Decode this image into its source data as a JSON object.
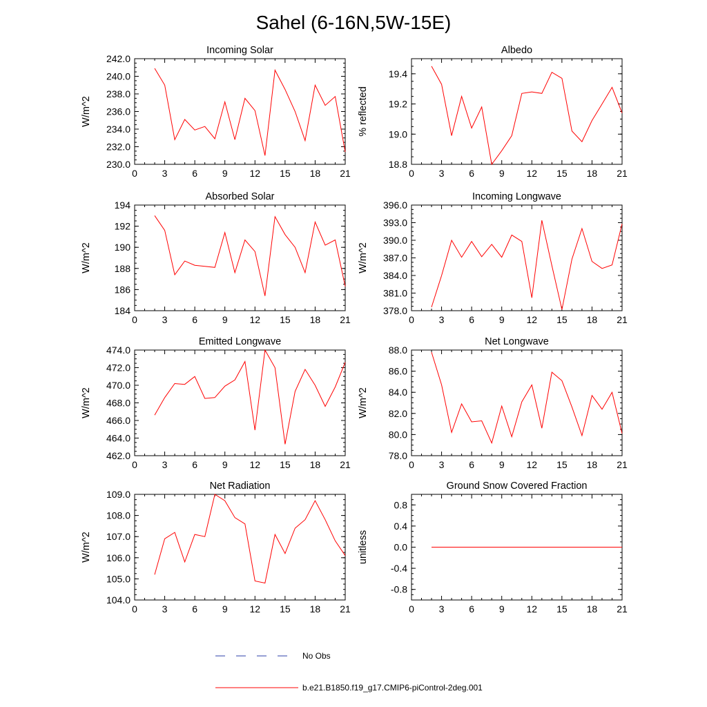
{
  "figure": {
    "title": "Sahel (6-16N,5W-15E)"
  },
  "legend": {
    "entries": [
      {
        "label": "No Obs",
        "style": "dashed",
        "color": "#2b3fa8"
      },
      {
        "label": "b.e21.B1850.f19_g17.CMIP6-piControl-2deg.001",
        "style": "solid",
        "color": "#ff0000"
      }
    ]
  },
  "chart_data": [
    {
      "type": "line",
      "title": "Incoming Solar",
      "ylabel": "W/m^2",
      "xlim": [
        0,
        21
      ],
      "ylim": [
        230,
        242
      ],
      "xticks": [
        0,
        3,
        6,
        9,
        12,
        15,
        18,
        21
      ],
      "yticks": [
        230,
        232,
        234,
        236,
        238,
        240,
        242
      ],
      "ytick_labels": [
        "230.0",
        "232.0",
        "234.0",
        "236.0",
        "238.0",
        "240.0",
        "242.0"
      ],
      "x": [
        2,
        3,
        4,
        5,
        6,
        7,
        8,
        9,
        10,
        11,
        12,
        13,
        14,
        15,
        16,
        17,
        18,
        19,
        20,
        21
      ],
      "series": [
        {
          "name": "b.e21.B1850.f19_g17.CMIP6-piControl-2deg.001",
          "color": "#ff0000",
          "values": [
            240.9,
            239.0,
            232.8,
            235.1,
            233.9,
            234.3,
            232.9,
            237.1,
            232.8,
            237.5,
            236.1,
            231.0,
            240.7,
            238.5,
            236.0,
            232.7,
            239.0,
            236.7,
            237.7,
            231.4
          ]
        }
      ]
    },
    {
      "type": "line",
      "title": "Albedo",
      "ylabel": "% reflected",
      "xlim": [
        0,
        21
      ],
      "ylim": [
        18.8,
        19.5
      ],
      "xticks": [
        0,
        3,
        6,
        9,
        12,
        15,
        18,
        21
      ],
      "yticks": [
        18.8,
        19.0,
        19.2,
        19.4
      ],
      "ytick_labels": [
        "18.8",
        "19.0",
        "19.2",
        "19.4"
      ],
      "x": [
        2,
        3,
        4,
        5,
        6,
        7,
        8,
        9,
        10,
        11,
        12,
        13,
        14,
        15,
        16,
        17,
        18,
        19,
        20,
        21
      ],
      "series": [
        {
          "name": "b.e21.B1850.f19_g17.CMIP6-piControl-2deg.001",
          "color": "#ff0000",
          "values": [
            19.45,
            19.33,
            18.99,
            19.25,
            19.04,
            19.18,
            18.8,
            18.89,
            18.99,
            19.27,
            19.28,
            19.27,
            19.41,
            19.37,
            19.02,
            18.95,
            19.09,
            19.2,
            19.31,
            19.14
          ]
        }
      ]
    },
    {
      "type": "line",
      "title": "Absorbed Solar",
      "ylabel": "W/m^2",
      "xlim": [
        0,
        21
      ],
      "ylim": [
        184,
        194
      ],
      "xticks": [
        0,
        3,
        6,
        9,
        12,
        15,
        18,
        21
      ],
      "yticks": [
        184,
        186,
        188,
        190,
        192,
        194
      ],
      "ytick_labels": [
        "184",
        "186",
        "188",
        "190",
        "192",
        "194"
      ],
      "x": [
        2,
        3,
        4,
        5,
        6,
        7,
        8,
        9,
        10,
        11,
        12,
        13,
        14,
        15,
        16,
        17,
        18,
        19,
        20,
        21
      ],
      "series": [
        {
          "name": "b.e21.B1850.f19_g17.CMIP6-piControl-2deg.001",
          "color": "#ff0000",
          "values": [
            193.0,
            191.6,
            187.4,
            188.7,
            188.3,
            188.2,
            188.1,
            191.4,
            187.6,
            190.7,
            189.6,
            185.4,
            192.9,
            191.2,
            190.0,
            187.6,
            192.4,
            190.2,
            190.7,
            186.3
          ]
        }
      ]
    },
    {
      "type": "line",
      "title": "Incoming Longwave",
      "ylabel": "W/m^2",
      "xlim": [
        0,
        21
      ],
      "ylim": [
        378,
        396
      ],
      "xticks": [
        0,
        3,
        6,
        9,
        12,
        15,
        18,
        21
      ],
      "yticks": [
        378,
        381,
        384,
        387,
        390,
        393,
        396
      ],
      "ytick_labels": [
        "378.0",
        "381.0",
        "384.0",
        "387.0",
        "390.0",
        "393.0",
        "396.0"
      ],
      "x": [
        2,
        3,
        4,
        5,
        6,
        7,
        8,
        9,
        10,
        11,
        12,
        13,
        14,
        15,
        16,
        17,
        18,
        19,
        20,
        21
      ],
      "series": [
        {
          "name": "b.e21.B1850.f19_g17.CMIP6-piControl-2deg.001",
          "color": "#ff0000",
          "values": [
            378.6,
            384.0,
            390.0,
            387.1,
            389.8,
            387.2,
            389.3,
            387.1,
            390.9,
            389.8,
            380.2,
            393.4,
            385.7,
            378.2,
            386.8,
            392.0,
            386.4,
            385.2,
            385.8,
            392.8
          ]
        }
      ]
    },
    {
      "type": "line",
      "title": "Emitted Longwave",
      "ylabel": "W/m^2",
      "xlim": [
        0,
        21
      ],
      "ylim": [
        462,
        474
      ],
      "xticks": [
        0,
        3,
        6,
        9,
        12,
        15,
        18,
        21
      ],
      "yticks": [
        462,
        464,
        466,
        468,
        470,
        472,
        474
      ],
      "ytick_labels": [
        "462.0",
        "464.0",
        "466.0",
        "468.0",
        "470.0",
        "472.0",
        "474.0"
      ],
      "x": [
        2,
        3,
        4,
        5,
        6,
        7,
        8,
        9,
        10,
        11,
        12,
        13,
        14,
        15,
        16,
        17,
        18,
        19,
        20,
        21
      ],
      "series": [
        {
          "name": "b.e21.B1850.f19_g17.CMIP6-piControl-2deg.001",
          "color": "#ff0000",
          "values": [
            466.6,
            468.6,
            470.2,
            470.1,
            471.0,
            468.5,
            468.6,
            469.9,
            470.6,
            472.7,
            464.9,
            474.0,
            472.0,
            463.3,
            469.3,
            471.8,
            470.0,
            467.6,
            469.8,
            472.6
          ]
        }
      ]
    },
    {
      "type": "line",
      "title": "Net Longwave",
      "ylabel": "W/m^2",
      "xlim": [
        0,
        21
      ],
      "ylim": [
        78,
        88
      ],
      "xticks": [
        0,
        3,
        6,
        9,
        12,
        15,
        18,
        21
      ],
      "yticks": [
        78,
        80,
        82,
        84,
        86,
        88
      ],
      "ytick_labels": [
        "78.0",
        "80.0",
        "82.0",
        "84.0",
        "86.0",
        "88.0"
      ],
      "x": [
        2,
        3,
        4,
        5,
        6,
        7,
        8,
        9,
        10,
        11,
        12,
        13,
        14,
        15,
        16,
        17,
        18,
        19,
        20,
        21
      ],
      "series": [
        {
          "name": "b.e21.B1850.f19_g17.CMIP6-piControl-2deg.001",
          "color": "#ff0000",
          "values": [
            87.8,
            84.7,
            80.2,
            82.9,
            81.2,
            81.3,
            79.2,
            82.7,
            79.8,
            83.1,
            84.7,
            80.6,
            85.9,
            85.1,
            82.6,
            79.9,
            83.7,
            82.4,
            84.0,
            80.1
          ]
        }
      ]
    },
    {
      "type": "line",
      "title": "Net Radiation",
      "ylabel": "W/m^2",
      "xlim": [
        0,
        21
      ],
      "ylim": [
        104,
        109
      ],
      "xticks": [
        0,
        3,
        6,
        9,
        12,
        15,
        18,
        21
      ],
      "yticks": [
        104,
        105,
        106,
        107,
        108,
        109
      ],
      "ytick_labels": [
        "104.0",
        "105.0",
        "106.0",
        "107.0",
        "108.0",
        "109.0"
      ],
      "x": [
        2,
        3,
        4,
        5,
        6,
        7,
        8,
        9,
        10,
        11,
        12,
        13,
        14,
        15,
        16,
        17,
        18,
        19,
        20,
        21
      ],
      "series": [
        {
          "name": "b.e21.B1850.f19_g17.CMIP6-piControl-2deg.001",
          "color": "#ff0000",
          "values": [
            105.2,
            106.9,
            107.2,
            105.8,
            107.1,
            107.0,
            109.0,
            108.7,
            107.9,
            107.6,
            104.9,
            104.8,
            107.1,
            106.2,
            107.4,
            107.8,
            108.7,
            107.8,
            106.8,
            106.1
          ]
        }
      ]
    },
    {
      "type": "line",
      "title": "Ground Snow Covered Fraction",
      "ylabel": "unitless",
      "xlim": [
        0,
        21
      ],
      "ylim": [
        -1.0,
        1.0
      ],
      "xticks": [
        0,
        3,
        6,
        9,
        12,
        15,
        18,
        21
      ],
      "yticks": [
        -0.8,
        -0.4,
        0.0,
        0.4,
        0.8
      ],
      "ytick_labels": [
        "-0.8",
        "-0.4",
        "0.0",
        "0.4",
        "0.8"
      ],
      "x": [
        2,
        3,
        4,
        5,
        6,
        7,
        8,
        9,
        10,
        11,
        12,
        13,
        14,
        15,
        16,
        17,
        18,
        19,
        20,
        21
      ],
      "series": [
        {
          "name": "b.e21.B1850.f19_g17.CMIP6-piControl-2deg.001",
          "color": "#ff0000",
          "values": [
            0,
            0,
            0,
            0,
            0,
            0,
            0,
            0,
            0,
            0,
            0,
            0,
            0,
            0,
            0,
            0,
            0,
            0,
            0,
            0
          ]
        }
      ]
    }
  ]
}
